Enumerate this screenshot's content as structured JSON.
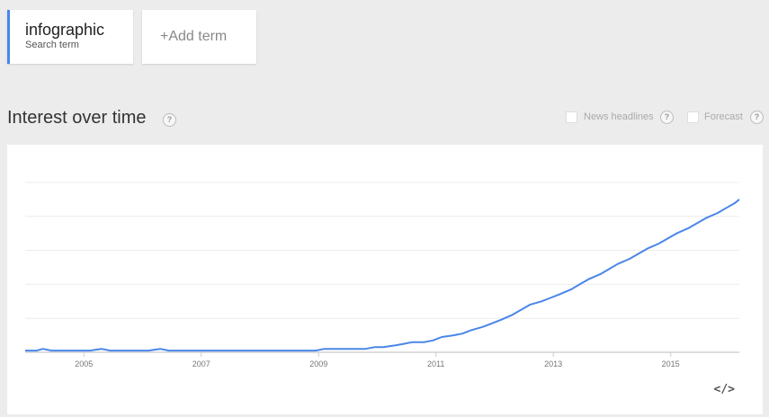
{
  "search_term": {
    "name": "infographic",
    "subtitle": "Search term",
    "color": "#4a86e8"
  },
  "add_term": {
    "label": "+Add term"
  },
  "section": {
    "title": "Interest over time",
    "help_icon": "?"
  },
  "options": {
    "news_headlines_label": "News headlines",
    "forecast_label": "Forecast",
    "help_icon": "?"
  },
  "embed_icon": "</>",
  "chart_data": {
    "type": "line",
    "title": "",
    "xlabel": "",
    "ylabel": "",
    "xlim": [
      2004.0,
      2016.17
    ],
    "ylim": [
      0,
      100
    ],
    "grid": true,
    "x_ticks": [
      2005,
      2007,
      2009,
      2011,
      2013,
      2015
    ],
    "y_gridlines": [
      20,
      40,
      60,
      80,
      100
    ],
    "series": [
      {
        "color": "#4a86e8",
        "points": [
          [
            2004.0,
            1
          ],
          [
            2004.2,
            1
          ],
          [
            2004.3,
            2
          ],
          [
            2004.45,
            1
          ],
          [
            2004.6,
            1
          ],
          [
            2004.8,
            1
          ],
          [
            2004.95,
            1
          ],
          [
            2005.1,
            1
          ],
          [
            2005.3,
            2
          ],
          [
            2005.45,
            1
          ],
          [
            2005.6,
            1
          ],
          [
            2005.8,
            1
          ],
          [
            2005.95,
            1
          ],
          [
            2006.1,
            1
          ],
          [
            2006.3,
            2
          ],
          [
            2006.45,
            1
          ],
          [
            2006.6,
            1
          ],
          [
            2006.8,
            1
          ],
          [
            2006.95,
            1
          ],
          [
            2007.1,
            1
          ],
          [
            2007.3,
            1
          ],
          [
            2007.45,
            1
          ],
          [
            2007.6,
            1
          ],
          [
            2007.8,
            1
          ],
          [
            2007.95,
            1
          ],
          [
            2008.1,
            1
          ],
          [
            2008.3,
            1
          ],
          [
            2008.45,
            1
          ],
          [
            2008.6,
            1
          ],
          [
            2008.8,
            1
          ],
          [
            2008.95,
            1
          ],
          [
            2009.1,
            2
          ],
          [
            2009.3,
            2
          ],
          [
            2009.45,
            2
          ],
          [
            2009.6,
            2
          ],
          [
            2009.8,
            2
          ],
          [
            2009.95,
            3
          ],
          [
            2010.1,
            3
          ],
          [
            2010.3,
            4
          ],
          [
            2010.45,
            5
          ],
          [
            2010.6,
            6
          ],
          [
            2010.8,
            6
          ],
          [
            2010.95,
            7
          ],
          [
            2011.1,
            9
          ],
          [
            2011.3,
            10
          ],
          [
            2011.45,
            11
          ],
          [
            2011.6,
            13
          ],
          [
            2011.8,
            15
          ],
          [
            2011.95,
            17
          ],
          [
            2012.1,
            19
          ],
          [
            2012.3,
            22
          ],
          [
            2012.45,
            25
          ],
          [
            2012.6,
            28
          ],
          [
            2012.8,
            30
          ],
          [
            2012.95,
            32
          ],
          [
            2013.1,
            34
          ],
          [
            2013.3,
            37
          ],
          [
            2013.45,
            40
          ],
          [
            2013.6,
            43
          ],
          [
            2013.8,
            46
          ],
          [
            2013.95,
            49
          ],
          [
            2014.1,
            52
          ],
          [
            2014.3,
            55
          ],
          [
            2014.45,
            58
          ],
          [
            2014.6,
            61
          ],
          [
            2014.8,
            64
          ],
          [
            2014.95,
            67
          ],
          [
            2015.1,
            70
          ],
          [
            2015.3,
            73
          ],
          [
            2015.45,
            76
          ],
          [
            2015.6,
            79
          ],
          [
            2015.8,
            82
          ],
          [
            2015.95,
            85
          ],
          [
            2016.1,
            88
          ],
          [
            2016.17,
            90
          ]
        ]
      }
    ]
  }
}
